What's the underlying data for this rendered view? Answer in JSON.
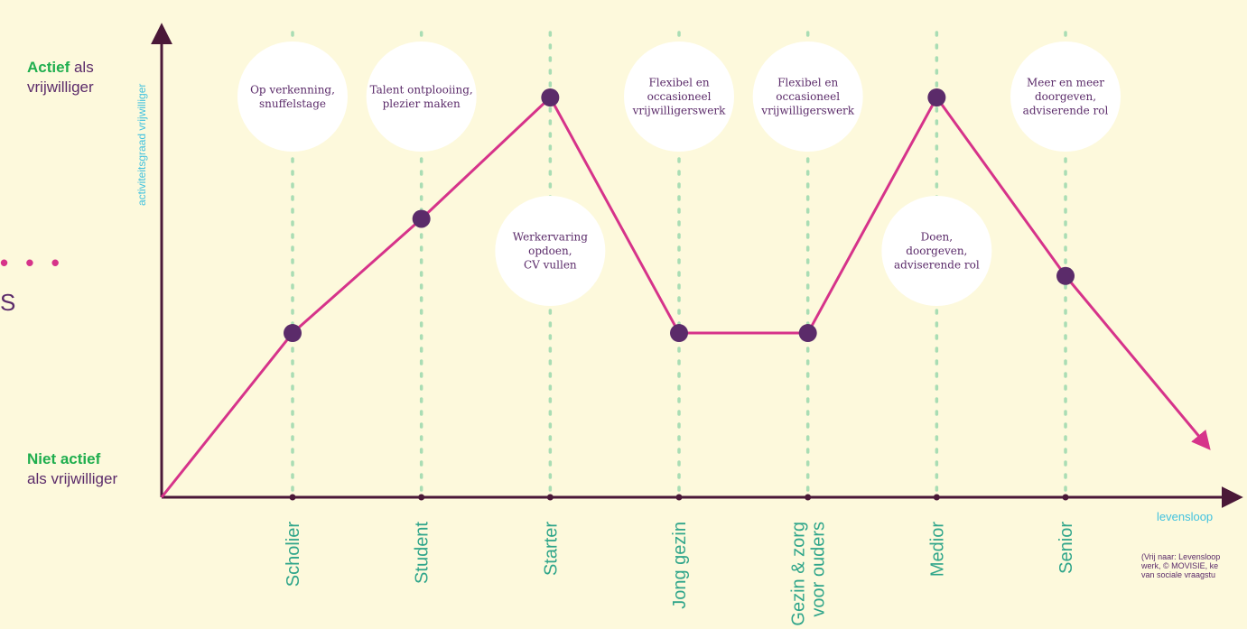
{
  "chart_data": {
    "type": "line",
    "y_axis_title": "activiteitsgraad vrijwilliger",
    "x_axis_title": "levensloop",
    "y_top_label": {
      "bold": "Actief",
      "rest": " als",
      "line2": "vrijwilliger"
    },
    "y_bottom_label": {
      "bold": "Niet actief",
      "line2": "als vrijwilliger"
    },
    "ylim": [
      0,
      4
    ],
    "stages": [
      {
        "label": [
          "Scholier"
        ],
        "value": 1.15,
        "bubble": {
          "lines": [
            "Op verkenning,",
            "snuffelstage"
          ],
          "position": "top"
        }
      },
      {
        "label": [
          "Student"
        ],
        "value": 1.95,
        "bubble": {
          "lines": [
            "Talent ontplooiing,",
            "plezier maken"
          ],
          "position": "top"
        }
      },
      {
        "label": [
          "Starter"
        ],
        "value": 2.8,
        "bubble": {
          "lines": [
            "Werkervaring",
            "opdoen,",
            "CV vullen"
          ],
          "position": "middle"
        }
      },
      {
        "label": [
          "Jong gezin"
        ],
        "value": 1.15,
        "bubble": {
          "lines": [
            "Flexibel en",
            "occasioneel",
            "vrijwilligerswerk"
          ],
          "position": "top"
        }
      },
      {
        "label": [
          "Gezin & zorg",
          "voor ouders"
        ],
        "value": 1.15,
        "bubble": {
          "lines": [
            "Flexibel en",
            "occasioneel",
            "vrijwilligerswerk"
          ],
          "position": "top"
        }
      },
      {
        "label": [
          "Medior"
        ],
        "value": 2.8,
        "bubble": {
          "lines": [
            "Doen,",
            "doorgeven,",
            "adviserende rol"
          ],
          "position": "middle"
        }
      },
      {
        "label": [
          "Senior"
        ],
        "value": 1.55,
        "bubble": {
          "lines": [
            "Meer en meer",
            "doorgeven,",
            "adviserende rol"
          ],
          "position": "top"
        }
      }
    ],
    "start": {
      "value": 0
    },
    "end_arrow_value": 0.35,
    "colors": {
      "line": "#d6338a",
      "point": "#5b2b6a",
      "axis": "#4a1838",
      "grid_dots": "#a9ddb4",
      "bubble": "#ffffff",
      "stage_label": "#2fa58a",
      "accent_green": "#1fae4e",
      "axis_title": "#42c2df"
    }
  },
  "source_note": [
    "(Vrij naar: Levensloop",
    "werk, © MOVISIE, ke",
    "van sociale vraagstu"
  ],
  "fragments": {
    "dots": "• • •",
    "letter": "S"
  }
}
